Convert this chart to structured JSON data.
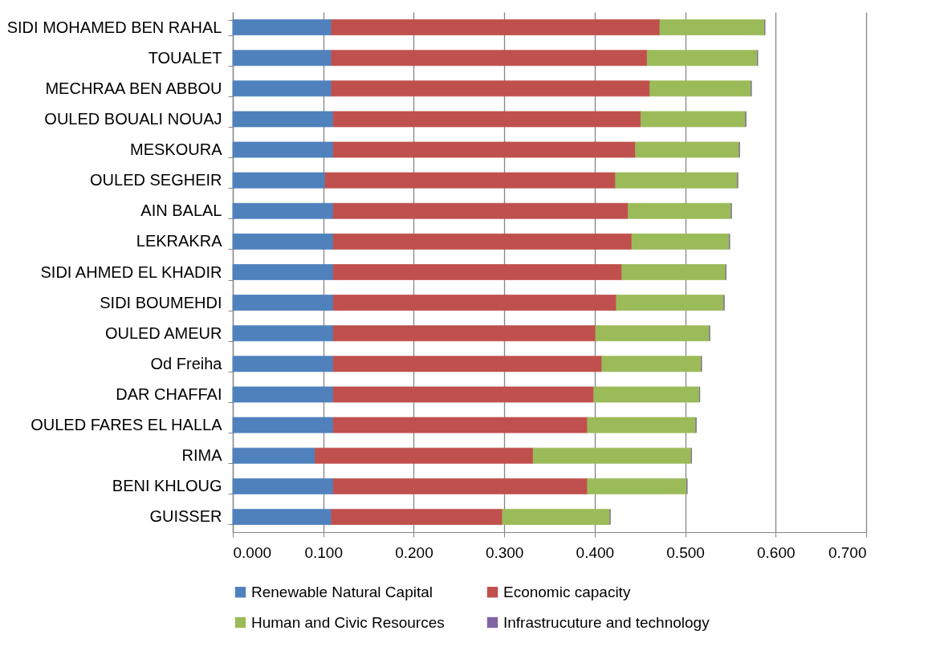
{
  "chart_data": {
    "type": "bar",
    "orientation": "horizontal",
    "stacked": true,
    "legend": "bottom",
    "grid": "x",
    "categories": [
      "SIDI MOHAMED BEN RAHAL",
      "TOUALET",
      "MECHRAA BEN ABBOU",
      "OULED BOUALI NOUAJ",
      "MESKOURA",
      "OULED SEGHEIR",
      "AIN BALAL",
      "LEKRAKRA",
      "SIDI AHMED EL KHADIR",
      "SIDI BOUMEHDI",
      "OULED AMEUR",
      "Od Freiha",
      "DAR CHAFFAI",
      "OULED FARES EL HALLA",
      "RIMA",
      "BENI KHLOUG",
      "GUISSER"
    ],
    "series": [
      {
        "name": "Renewable Natural Capital",
        "color": "#4f81bd",
        "values": [
          0.109,
          0.109,
          0.109,
          0.111,
          0.111,
          0.102,
          0.111,
          0.111,
          0.111,
          0.111,
          0.111,
          0.111,
          0.111,
          0.111,
          0.091,
          0.111,
          0.109
        ]
      },
      {
        "name": "Economic capacity",
        "color": "#c0504d",
        "values": [
          0.363,
          0.349,
          0.352,
          0.34,
          0.334,
          0.321,
          0.326,
          0.33,
          0.319,
          0.313,
          0.29,
          0.297,
          0.288,
          0.281,
          0.241,
          0.281,
          0.189
        ]
      },
      {
        "name": "Human and Civic Resources",
        "color": "#9bbb59",
        "values": [
          0.116,
          0.122,
          0.112,
          0.116,
          0.115,
          0.135,
          0.114,
          0.108,
          0.115,
          0.119,
          0.126,
          0.11,
          0.117,
          0.12,
          0.175,
          0.11,
          0.119
        ]
      },
      {
        "name": "Infrastrucuture and technology",
        "color": "#8064a2",
        "values": [
          0,
          0,
          0,
          0,
          0,
          0,
          0,
          0,
          0,
          0,
          0,
          0,
          0,
          0,
          0,
          0,
          0
        ]
      }
    ],
    "xlim": [
      0,
      0.7
    ],
    "xticks": [
      {
        "value": 0,
        "label": "0.000"
      },
      {
        "value": 0.1,
        "label": "0.100"
      },
      {
        "value": 0.2,
        "label": "0.200"
      },
      {
        "value": 0.3,
        "label": "0.300"
      },
      {
        "value": 0.4,
        "label": "0.400"
      },
      {
        "value": 0.5,
        "label": "0.500"
      },
      {
        "value": 0.6,
        "label": "0.600"
      },
      {
        "value": 0.7,
        "label": "0.700"
      }
    ]
  }
}
